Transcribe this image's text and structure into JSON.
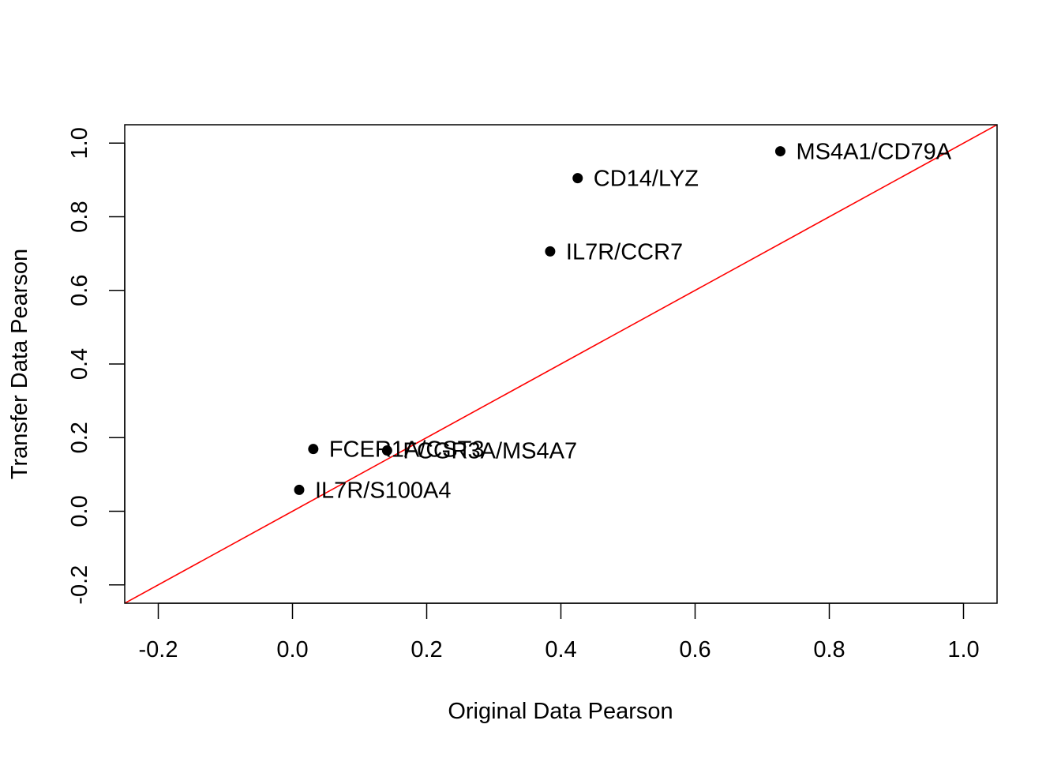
{
  "chart_data": {
    "type": "scatter",
    "title": "",
    "xlabel": "Original Data Pearson",
    "ylabel": "Transfer Data Pearson",
    "xlim": [
      -0.25,
      1.05
    ],
    "ylim": [
      -0.25,
      1.05
    ],
    "grid": false,
    "x_ticks": [
      -0.2,
      0.0,
      0.2,
      0.4,
      0.6,
      0.8,
      1.0
    ],
    "y_ticks": [
      -0.2,
      0.0,
      0.2,
      0.4,
      0.6,
      0.8,
      1.0
    ],
    "x_tick_labels": [
      "-0.2",
      "0.0",
      "0.2",
      "0.4",
      "0.6",
      "0.8",
      "1.0"
    ],
    "y_tick_labels": [
      "-0.2",
      "0.0",
      "0.2",
      "0.4",
      "0.6",
      "0.8",
      "1.0"
    ],
    "points": [
      {
        "label": "MS4A1/CD79A",
        "x": 0.727,
        "y": 0.978
      },
      {
        "label": "CD14/LYZ",
        "x": 0.425,
        "y": 0.905
      },
      {
        "label": "IL7R/CCR7",
        "x": 0.384,
        "y": 0.706
      },
      {
        "label": "FCER1A/CST3",
        "x": 0.031,
        "y": 0.169
      },
      {
        "label": "FCGR3A/MS4A7",
        "x": 0.141,
        "y": 0.165
      },
      {
        "label": "IL7R/S100A4",
        "x": 0.01,
        "y": 0.058
      }
    ],
    "reference_line": {
      "type": "identity",
      "intercept": 0,
      "slope": 1,
      "color": "#ff0000"
    },
    "point_color": "#000000"
  }
}
